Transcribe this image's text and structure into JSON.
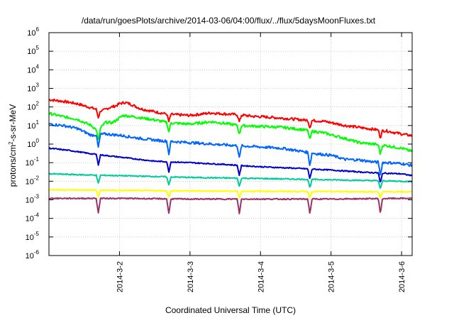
{
  "chart_data": {
    "type": "line",
    "title": "/data/run/goesPlots/archive/2014-03-06/04:00/flux/../flux/5daysMoonFluxes.txt",
    "ylabel_base": "protons/cm",
    "ylabel_sup": "2",
    "ylabel_tail": "-s-sr-MeV",
    "xlabel": "Coordinated Universal Time (UTC)",
    "yscale": "log",
    "ylim_exp": [
      -6,
      6
    ],
    "ytick_base": "10",
    "ytick_exponents": [
      "-6",
      "-5",
      "-4",
      "-3",
      "-2",
      "-1",
      "0",
      "1",
      "2",
      "3",
      "4",
      "5",
      "6"
    ],
    "xlim": [
      0,
      5.15
    ],
    "xticks": [
      {
        "x": 1,
        "label": "2014-3-2"
      },
      {
        "x": 2,
        "label": "2014-3-3"
      },
      {
        "x": 3,
        "label": "2014-3-4"
      },
      {
        "x": 4,
        "label": "2014-3-5"
      },
      {
        "x": 5,
        "label": "2014-3-6"
      }
    ],
    "grid": true,
    "legend": "none",
    "dips_x": [
      0.7,
      1.7,
      2.7,
      3.7,
      4.7
    ],
    "series": [
      {
        "color": "#ff0000",
        "points": [
          [
            0,
            250
          ],
          [
            0.2,
            200
          ],
          [
            0.4,
            150
          ],
          [
            0.6,
            90
          ],
          [
            0.75,
            60
          ],
          [
            0.85,
            90
          ],
          [
            0.95,
            115
          ],
          [
            1.0,
            150
          ],
          [
            1.08,
            175
          ],
          [
            1.15,
            145
          ],
          [
            1.3,
            80
          ],
          [
            1.5,
            55
          ],
          [
            1.7,
            40
          ],
          [
            2.0,
            35
          ],
          [
            2.3,
            48
          ],
          [
            2.5,
            42
          ],
          [
            2.7,
            38
          ],
          [
            2.9,
            31
          ],
          [
            3.0,
            30
          ],
          [
            3.3,
            25
          ],
          [
            3.6,
            20
          ],
          [
            3.9,
            17
          ],
          [
            4.2,
            10
          ],
          [
            4.5,
            7
          ],
          [
            4.8,
            5
          ],
          [
            5.0,
            3.5
          ],
          [
            5.15,
            2.8
          ]
        ]
      },
      {
        "color": "#00ff00",
        "points": [
          [
            0,
            45
          ],
          [
            0.2,
            30
          ],
          [
            0.4,
            22
          ],
          [
            0.6,
            10
          ],
          [
            0.7,
            5
          ],
          [
            0.8,
            15
          ],
          [
            0.9,
            14
          ],
          [
            1.05,
            35
          ],
          [
            1.2,
            30
          ],
          [
            1.5,
            20
          ],
          [
            1.7,
            14
          ],
          [
            2.0,
            12
          ],
          [
            2.3,
            16
          ],
          [
            2.5,
            13
          ],
          [
            2.7,
            10
          ],
          [
            3.0,
            9
          ],
          [
            3.3,
            8
          ],
          [
            3.6,
            6
          ],
          [
            3.9,
            4
          ],
          [
            4.2,
            2
          ],
          [
            4.4,
            1.2
          ],
          [
            4.6,
            1.0
          ],
          [
            4.8,
            0.8
          ],
          [
            5.0,
            0.6
          ],
          [
            5.15,
            0.4
          ]
        ]
      },
      {
        "color": "#0066ff",
        "points": [
          [
            0,
            12
          ],
          [
            0.2,
            10
          ],
          [
            0.4,
            7
          ],
          [
            0.6,
            3
          ],
          [
            0.8,
            3.5
          ],
          [
            1.0,
            3
          ],
          [
            1.3,
            2
          ],
          [
            1.6,
            1.5
          ],
          [
            2.0,
            1.2
          ],
          [
            2.5,
            0.9
          ],
          [
            3.0,
            0.7
          ],
          [
            3.3,
            0.6
          ],
          [
            3.6,
            0.4
          ],
          [
            3.8,
            0.3
          ],
          [
            4.0,
            0.25
          ],
          [
            4.2,
            0.15
          ],
          [
            4.4,
            0.14
          ],
          [
            4.6,
            0.11
          ],
          [
            4.8,
            0.1
          ],
          [
            5.0,
            0.09
          ],
          [
            5.15,
            0.07
          ]
        ]
      },
      {
        "color": "#0000cc",
        "points": [
          [
            0,
            0.6
          ],
          [
            0.3,
            0.45
          ],
          [
            0.6,
            0.3
          ],
          [
            1.0,
            0.2
          ],
          [
            1.5,
            0.12
          ],
          [
            2.0,
            0.1
          ],
          [
            2.5,
            0.08
          ],
          [
            3.0,
            0.06
          ],
          [
            3.5,
            0.05
          ],
          [
            4.0,
            0.04
          ],
          [
            4.5,
            0.03
          ],
          [
            5.0,
            0.025
          ],
          [
            5.15,
            0.02
          ]
        ]
      },
      {
        "color": "#00cc99",
        "points": [
          [
            0,
            0.025
          ],
          [
            0.5,
            0.022
          ],
          [
            1.0,
            0.02
          ],
          [
            1.5,
            0.018
          ],
          [
            2.0,
            0.016
          ],
          [
            2.5,
            0.015
          ],
          [
            3.0,
            0.014
          ],
          [
            3.5,
            0.013
          ],
          [
            4.0,
            0.012
          ],
          [
            4.5,
            0.011
          ],
          [
            5.0,
            0.01
          ],
          [
            5.15,
            0.0095
          ]
        ]
      },
      {
        "color": "#ffff00",
        "points": [
          [
            0,
            0.0035
          ],
          [
            1.0,
            0.0032
          ],
          [
            2.0,
            0.003
          ],
          [
            3.0,
            0.0029
          ],
          [
            4.0,
            0.0028
          ],
          [
            5.0,
            0.0027
          ],
          [
            5.15,
            0.0027
          ]
        ]
      },
      {
        "color": "#993366",
        "points": [
          [
            0,
            0.0012
          ],
          [
            1.0,
            0.0012
          ],
          [
            2.0,
            0.0011
          ],
          [
            3.0,
            0.0011
          ],
          [
            4.0,
            0.0011
          ],
          [
            5.0,
            0.0012
          ],
          [
            5.15,
            0.0012
          ]
        ]
      }
    ]
  }
}
